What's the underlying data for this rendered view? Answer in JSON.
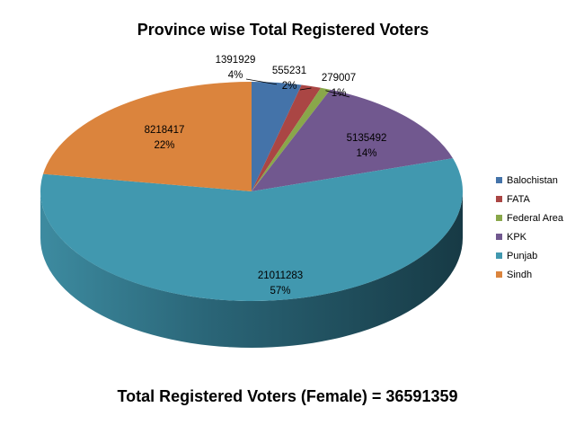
{
  "chart_data": {
    "type": "pie",
    "title": "Province wise Total Registered Voters",
    "footer": "Total Registered Voters (Female) = 36591359",
    "slices": [
      {
        "name": "Balochistan",
        "value": 1391929,
        "percent_label": "4%",
        "color": "#4473A9"
      },
      {
        "name": "FATA",
        "value": 555231,
        "percent_label": "2%",
        "color": "#AA4644"
      },
      {
        "name": "Federal Area",
        "value": 279007,
        "percent_label": "1%",
        "color": "#89A74A"
      },
      {
        "name": "KPK",
        "value": 5135492,
        "percent_label": "14%",
        "color": "#71588F"
      },
      {
        "name": "Punjab",
        "value": 21011283,
        "percent_label": "57%",
        "color": "#4198AF"
      },
      {
        "name": "Sindh",
        "value": 8218417,
        "percent_label": "22%",
        "color": "#DB843D"
      }
    ],
    "legend_position": "right",
    "style": "3d-pie"
  }
}
